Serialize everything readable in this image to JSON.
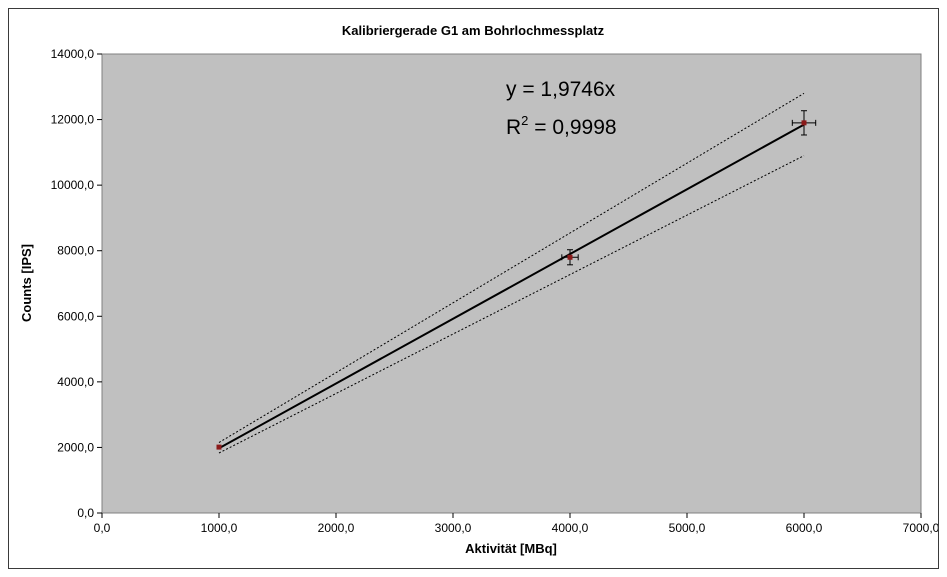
{
  "chart_data": {
    "type": "scatter",
    "title": "Kalibriergerade G1 am Bohrlochmessplatz",
    "xlabel": "Aktivität [MBq]",
    "ylabel": "Counts [IPS]",
    "xlim": [
      0,
      7000
    ],
    "ylim": [
      0,
      14000
    ],
    "x_ticks": [
      "0,0",
      "1000,0",
      "2000,0",
      "3000,0",
      "4000,0",
      "5000,0",
      "6000,0",
      "7000,0"
    ],
    "y_ticks": [
      "0,0",
      "2000,0",
      "4000,0",
      "6000,0",
      "8000,0",
      "10000,0",
      "12000,0",
      "14000,0"
    ],
    "points": [
      {
        "x": 1000,
        "y": 2010,
        "xerr": 0,
        "yerr": 0
      },
      {
        "x": 4000,
        "y": 7800,
        "xerr": 70,
        "yerr": 230
      },
      {
        "x": 6000,
        "y": 11900,
        "xerr": 100,
        "yerr": 370
      }
    ],
    "fit": {
      "slope": 1.9746,
      "x_range": [
        1000,
        6000
      ]
    },
    "confidence_band": {
      "upper": [
        [
          1000,
          2150
        ],
        [
          6000,
          12800
        ]
      ],
      "lower": [
        [
          1000,
          1830
        ],
        [
          6000,
          10900
        ]
      ]
    },
    "equation_label": "y = 1,9746x",
    "r2_prefix": "R",
    "r2_sup": "2",
    "r2_value": " = 0,9998",
    "grid": false,
    "legend": "none",
    "colors": {
      "plot_background": "#c0c0c0",
      "fit_line": "#000000",
      "band_line": "#000000",
      "marker": "#8b1a1a",
      "error_bar": "#000000"
    }
  }
}
